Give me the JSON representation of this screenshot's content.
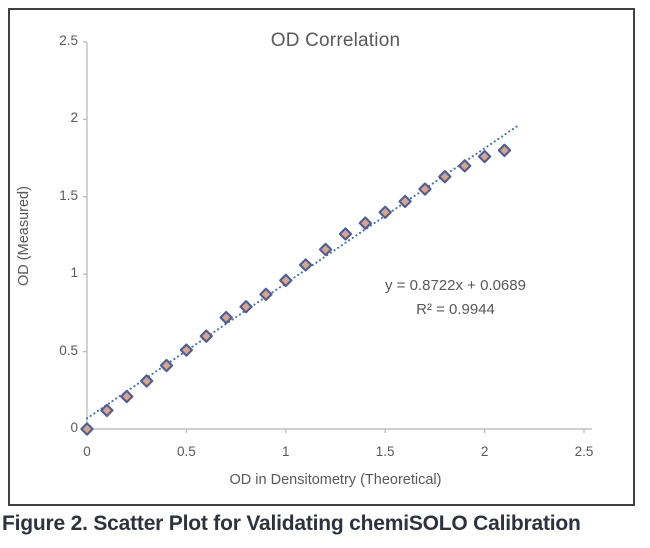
{
  "caption": "Figure 2. Scatter Plot for Validating chemiSOLO Calibration",
  "chart_data": {
    "type": "scatter",
    "title": "OD Correlation",
    "xlabel": "OD in Densitometry (Theoretical)",
    "ylabel": "OD (Measured)",
    "xlim": [
      0,
      2.5
    ],
    "ylim": [
      0,
      2.5
    ],
    "xticks": [
      "0",
      "0.5",
      "1",
      "1.5",
      "2",
      "2.5"
    ],
    "yticks": [
      "0",
      "0.5",
      "1",
      "1.5",
      "2",
      "2.5"
    ],
    "grid": false,
    "legend": false,
    "x": [
      0.0,
      0.1,
      0.2,
      0.3,
      0.4,
      0.5,
      0.6,
      0.7,
      0.8,
      0.9,
      1.0,
      1.1,
      1.2,
      1.3,
      1.4,
      1.5,
      1.6,
      1.7,
      1.8,
      1.9,
      2.0,
      2.1
    ],
    "y": [
      0.0,
      0.12,
      0.21,
      0.31,
      0.41,
      0.51,
      0.6,
      0.72,
      0.79,
      0.87,
      0.96,
      1.06,
      1.16,
      1.26,
      1.33,
      1.4,
      1.47,
      1.55,
      1.63,
      1.7,
      1.76,
      1.8
    ],
    "trendline": {
      "slope": 0.8722,
      "intercept": 0.0689,
      "x_start": 0,
      "x_end": 2.17,
      "style": "dotted",
      "color": "#4472C4"
    },
    "equation_line1": "y = 0.8722x + 0.0689",
    "equation_line2": "R² = 0.9944",
    "marker": {
      "shape": "diamond",
      "fill": "#D9A584",
      "stroke": "#4D5C9D"
    },
    "colors": {
      "axis_line": "#BFBFBF",
      "tick_text": "#595959",
      "title_text": "#595959",
      "frame_border": "#404040"
    }
  }
}
